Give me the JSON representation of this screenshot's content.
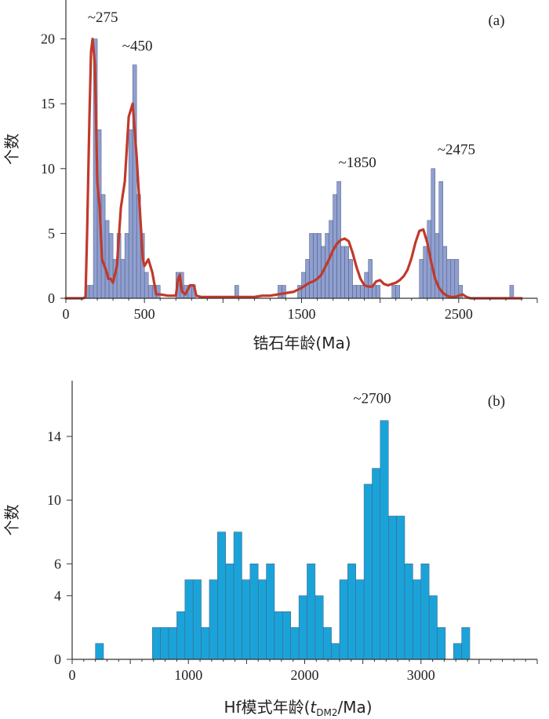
{
  "chart_data": [
    {
      "type": "bar",
      "panel_label": "(a)",
      "xlabel": "锆石年龄(Ma)",
      "ylabel": "个数",
      "xlim": [
        0,
        3000
      ],
      "ylim": [
        0,
        23
      ],
      "x_ticks": [
        0,
        500,
        1500,
        2500
      ],
      "y_ticks": [
        0,
        5,
        10,
        15,
        20
      ],
      "bin_width": 25,
      "bar_color": "#8f9fd0",
      "curve_color": "#c0392b",
      "bins_x": [
        125,
        150,
        175,
        200,
        225,
        250,
        275,
        300,
        325,
        350,
        375,
        400,
        425,
        450,
        475,
        500,
        525,
        550,
        575,
        625,
        650,
        700,
        725,
        750,
        775,
        800,
        850,
        875,
        900,
        925,
        950,
        975,
        1000,
        1025,
        1050,
        1075,
        1100,
        1125,
        1150,
        1175,
        1200,
        1225,
        1250,
        1275,
        1300,
        1325,
        1350,
        1375,
        1400,
        1425,
        1450,
        1475,
        1500,
        1525,
        1550,
        1575,
        1600,
        1625,
        1650,
        1675,
        1700,
        1725,
        1750,
        1775,
        1800,
        1825,
        1850,
        1875,
        1900,
        1925,
        1950,
        1975,
        2000,
        2025,
        2050,
        2075,
        2100,
        2125,
        2150,
        2175,
        2200,
        2225,
        2250,
        2275,
        2300,
        2325,
        2350,
        2375,
        2400,
        2425,
        2450,
        2475,
        2500,
        2525,
        2550,
        2575,
        2600,
        2625,
        2650,
        2675,
        2700,
        2725,
        2750,
        2775,
        2800,
        2825,
        2850,
        2875,
        2900,
        2925,
        2950
      ],
      "bins_y": [
        1,
        1,
        20,
        13,
        8,
        6,
        5,
        3,
        5,
        3,
        5,
        13,
        18,
        8,
        5,
        2,
        1,
        1,
        1,
        0,
        0,
        2,
        2,
        1,
        1,
        1,
        0,
        0,
        0,
        0,
        0,
        0,
        0,
        0,
        0,
        1,
        0,
        0,
        0,
        0,
        0,
        0,
        0,
        0,
        0,
        0,
        1,
        1,
        0,
        0,
        0,
        1,
        2,
        3,
        5,
        5,
        5,
        4,
        5,
        6,
        8,
        9,
        4,
        4,
        3,
        1,
        1,
        1,
        2,
        3,
        1,
        1,
        0,
        0,
        0,
        1,
        1,
        0,
        0,
        0,
        0,
        0,
        3,
        4,
        6,
        10,
        5,
        9,
        4,
        3,
        3,
        3,
        1,
        0,
        0,
        0,
        0,
        0,
        0,
        0,
        0,
        0,
        0,
        0,
        0,
        1,
        0,
        0,
        0,
        0,
        0
      ],
      "curve_x": [
        0,
        110,
        125,
        135,
        150,
        160,
        170,
        185,
        200,
        215,
        230,
        260,
        270,
        285,
        300,
        325,
        350,
        375,
        400,
        425,
        450,
        470,
        490,
        500,
        525,
        550,
        575,
        600,
        650,
        700,
        715,
        725,
        740,
        760,
        790,
        800,
        815,
        830,
        860,
        880,
        900,
        1000,
        1100,
        1200,
        1250,
        1300,
        1350,
        1400,
        1450,
        1500,
        1525,
        1550,
        1575,
        1600,
        1625,
        1650,
        1675,
        1700,
        1725,
        1750,
        1775,
        1800,
        1825,
        1850,
        1875,
        1900,
        1925,
        1950,
        1975,
        2000,
        2025,
        2050,
        2075,
        2100,
        2125,
        2150,
        2175,
        2200,
        2225,
        2250,
        2275,
        2300,
        2325,
        2350,
        2375,
        2400,
        2425,
        2450,
        2475,
        2500,
        2525,
        2550,
        2575,
        2600,
        2625,
        2650,
        2700,
        2750,
        2800,
        2850,
        2875,
        2900
      ],
      "curve_y": [
        0,
        0,
        0.1,
        5,
        14,
        19,
        20,
        18,
        9,
        7,
        3,
        2,
        1.5,
        1.5,
        1.2,
        2.5,
        7,
        9,
        14,
        15,
        11,
        7,
        3,
        2.5,
        3,
        2,
        0.3,
        0.3,
        0.2,
        0.2,
        1.5,
        1.8,
        0.5,
        0.3,
        1,
        1,
        1,
        0.2,
        0.1,
        0.1,
        0.1,
        0.1,
        0.1,
        0.1,
        0.2,
        0.2,
        0.3,
        0.4,
        0.5,
        0.8,
        1,
        1.2,
        1.3,
        1.5,
        1.8,
        2.4,
        3,
        3.7,
        4.2,
        4.5,
        4.6,
        4.4,
        3.5,
        2.4,
        1.5,
        1,
        0.9,
        0.9,
        1.3,
        1.4,
        1.1,
        1,
        1.1,
        1.2,
        1.4,
        1.7,
        2.2,
        3.1,
        4.3,
        5.2,
        5.3,
        4.3,
        2.8,
        1.5,
        0.8,
        0.4,
        0.2,
        0.1,
        0.1,
        0.2,
        0.3,
        0.1,
        0,
        0,
        0,
        0,
        0,
        0,
        0,
        0,
        0,
        0
      ],
      "annotations": [
        {
          "text": "~275",
          "x": 235,
          "y": 21.3
        },
        {
          "text": "~450",
          "x": 455,
          "y": 19.1
        },
        {
          "text": "~1850",
          "x": 1855,
          "y": 10.1
        },
        {
          "text": "~2475",
          "x": 2485,
          "y": 11.1
        }
      ]
    },
    {
      "type": "bar",
      "panel_label": "(b)",
      "xlabel_main": "Hf模式年龄(",
      "xlabel_italic": "t",
      "xlabel_sub": "DM2",
      "xlabel_tail": "/Ma)",
      "ylabel": "个数",
      "xlim": [
        0,
        4000
      ],
      "ylim": [
        0,
        17.5
      ],
      "x_ticks": [
        0,
        1000,
        2000,
        3000
      ],
      "y_ticks": [
        0,
        4,
        6,
        10,
        14
      ],
      "bin_width": 70,
      "bar_color": "#1aa3d9",
      "bins_x": [
        200,
        690,
        760,
        830,
        900,
        970,
        1040,
        1110,
        1180,
        1250,
        1320,
        1390,
        1460,
        1530,
        1600,
        1670,
        1740,
        1810,
        1880,
        1950,
        2020,
        2090,
        2160,
        2230,
        2300,
        2370,
        2440,
        2510,
        2580,
        2650,
        2720,
        2790,
        2860,
        2930,
        3000,
        3070,
        3140,
        3210,
        3280,
        3350
      ],
      "bins_y": [
        1,
        2,
        2,
        2,
        3,
        5,
        5,
        2,
        5,
        8,
        6,
        8,
        5,
        6,
        5,
        6,
        3,
        3,
        2,
        4,
        6,
        4,
        2,
        1,
        5,
        6,
        5,
        11,
        12,
        15,
        9,
        9,
        6,
        5,
        6,
        4,
        2,
        0,
        1,
        2
      ],
      "annotations": [
        {
          "text": "~2700",
          "x": 2580,
          "y": 16.1
        }
      ]
    }
  ]
}
